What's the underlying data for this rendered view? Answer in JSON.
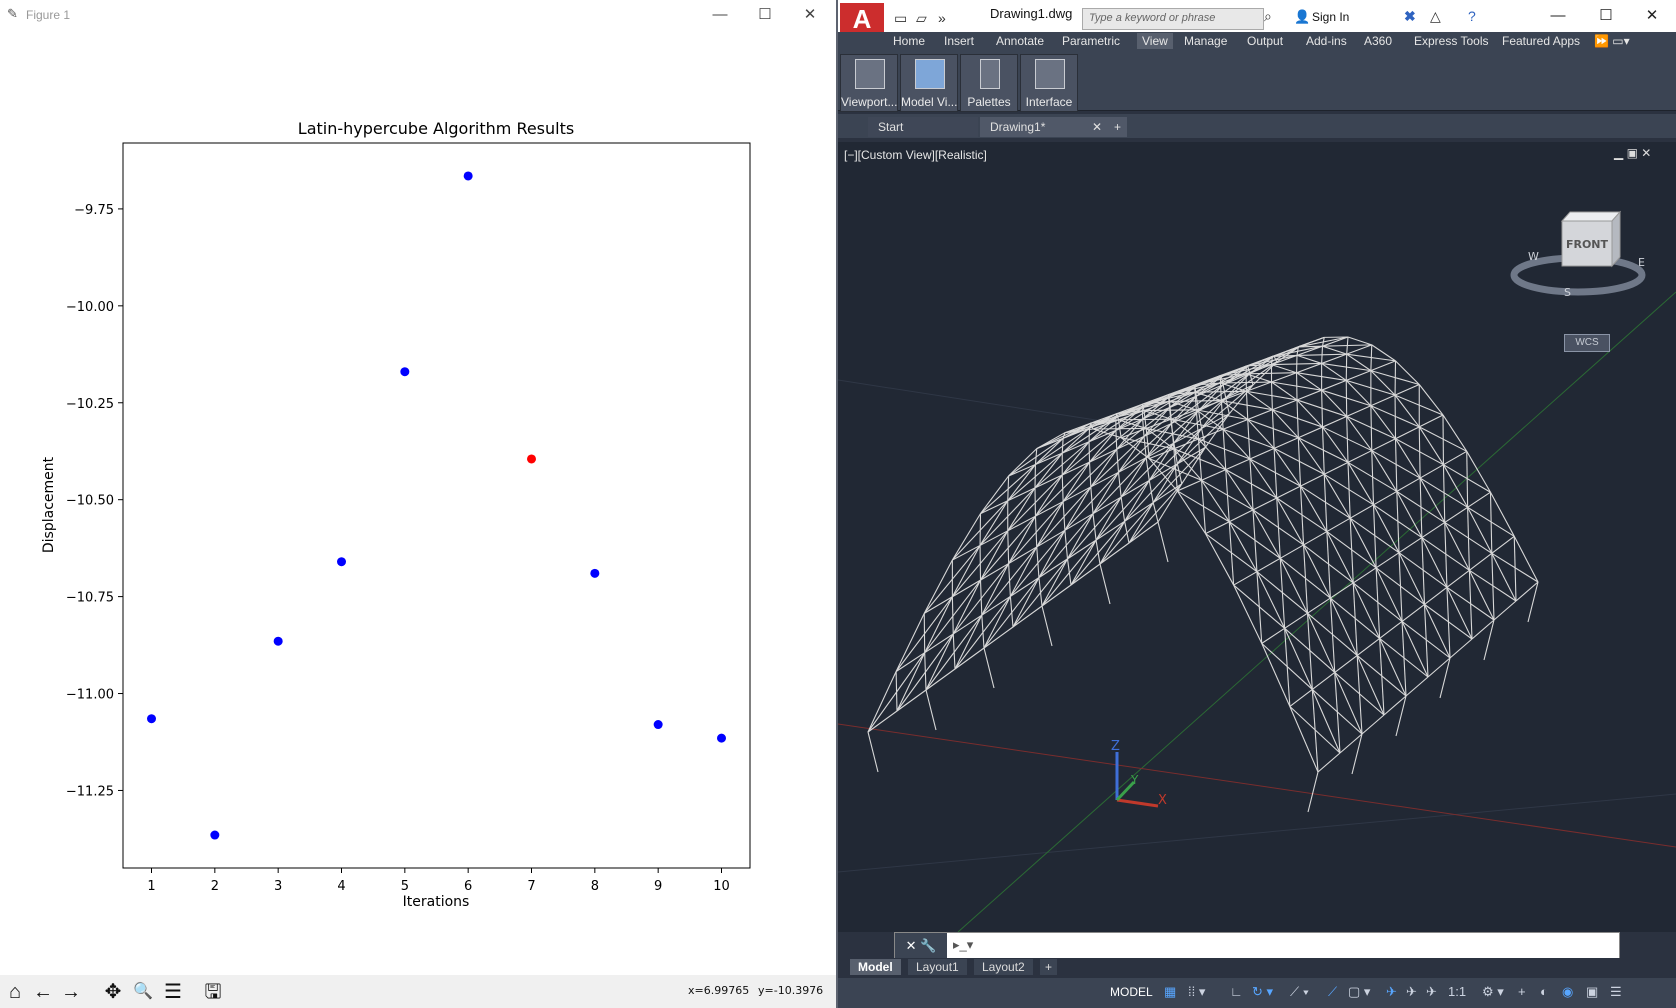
{
  "matplotlib": {
    "window_title": "Figure 1",
    "window_controls": {
      "minimize": "—",
      "maximize": "☐",
      "close": "✕"
    },
    "toolbar": {
      "home": "⌂",
      "back": "←",
      "forward": "→",
      "pan": "✥",
      "zoom": "🔍",
      "configure": "☰",
      "save": "🖫"
    },
    "coords_x": "x=6.99765",
    "coords_y": "y=-10.3976"
  },
  "chart_data": {
    "type": "scatter",
    "title": "Latin-hypercube Algorithm Results",
    "xlabel": "Iterations",
    "ylabel": "Displacement",
    "x": [
      1,
      2,
      3,
      4,
      5,
      6,
      7,
      8,
      9,
      10
    ],
    "y": [
      -11.065,
      -11.365,
      -10.865,
      -10.66,
      -10.17,
      -9.665,
      -10.395,
      -10.69,
      -11.08,
      -11.115
    ],
    "point_colors": [
      "#0000ff",
      "#0000ff",
      "#0000ff",
      "#0000ff",
      "#0000ff",
      "#0000ff",
      "#ff0000",
      "#0000ff",
      "#0000ff",
      "#0000ff"
    ],
    "xticks": [
      "1",
      "2",
      "3",
      "4",
      "5",
      "6",
      "7",
      "8",
      "9",
      "10"
    ],
    "yticks": [
      -9.75,
      -10.0,
      -10.25,
      -10.5,
      -10.75,
      -11.0,
      -11.25
    ],
    "ytick_labels": [
      "−9.75",
      "−10.00",
      "−10.25",
      "−10.50",
      "−10.75",
      "−11.00",
      "−11.25"
    ],
    "xlim": [
      0.55,
      10.45
    ],
    "ylim": [
      -11.45,
      -9.58
    ],
    "grid": false
  },
  "autocad": {
    "app_letter": "A",
    "doc_title": "Drawing1.dwg",
    "search_placeholder": "Type a keyword or phrase",
    "sign_in": "Sign In",
    "ribbon_tabs": [
      "Home",
      "Insert",
      "Annotate",
      "Parametric",
      "View",
      "Manage",
      "Output",
      "Add-ins",
      "A360",
      "Express Tools",
      "Featured Apps"
    ],
    "active_tab": "View",
    "ribbon_buttons": [
      "Viewport...",
      "Model Vi...",
      "Palettes",
      "Interface"
    ],
    "file_tabs": {
      "start": "Start",
      "drawing": "Drawing1*",
      "close": "✕",
      "add": "+"
    },
    "viewport_label": "[−][Custom View][Realistic]",
    "viewcube": {
      "face": "FRONT",
      "west": "W",
      "south": "S",
      "east": "E"
    },
    "wcs": "WCS",
    "axes": {
      "x": "X",
      "y": "Y",
      "z": "Z"
    },
    "layout_tabs": [
      "Model",
      "Layout1",
      "Layout2"
    ],
    "layout_add": "+",
    "status_model": "MODEL",
    "status_scale": "1:1",
    "colors": {
      "background": "#212834",
      "panel": "#3b4453",
      "mesh": "#d8d8d8",
      "x_axis": "#c0392b",
      "y_axis": "#3aa04a",
      "z_axis": "#3f6fd8"
    }
  }
}
